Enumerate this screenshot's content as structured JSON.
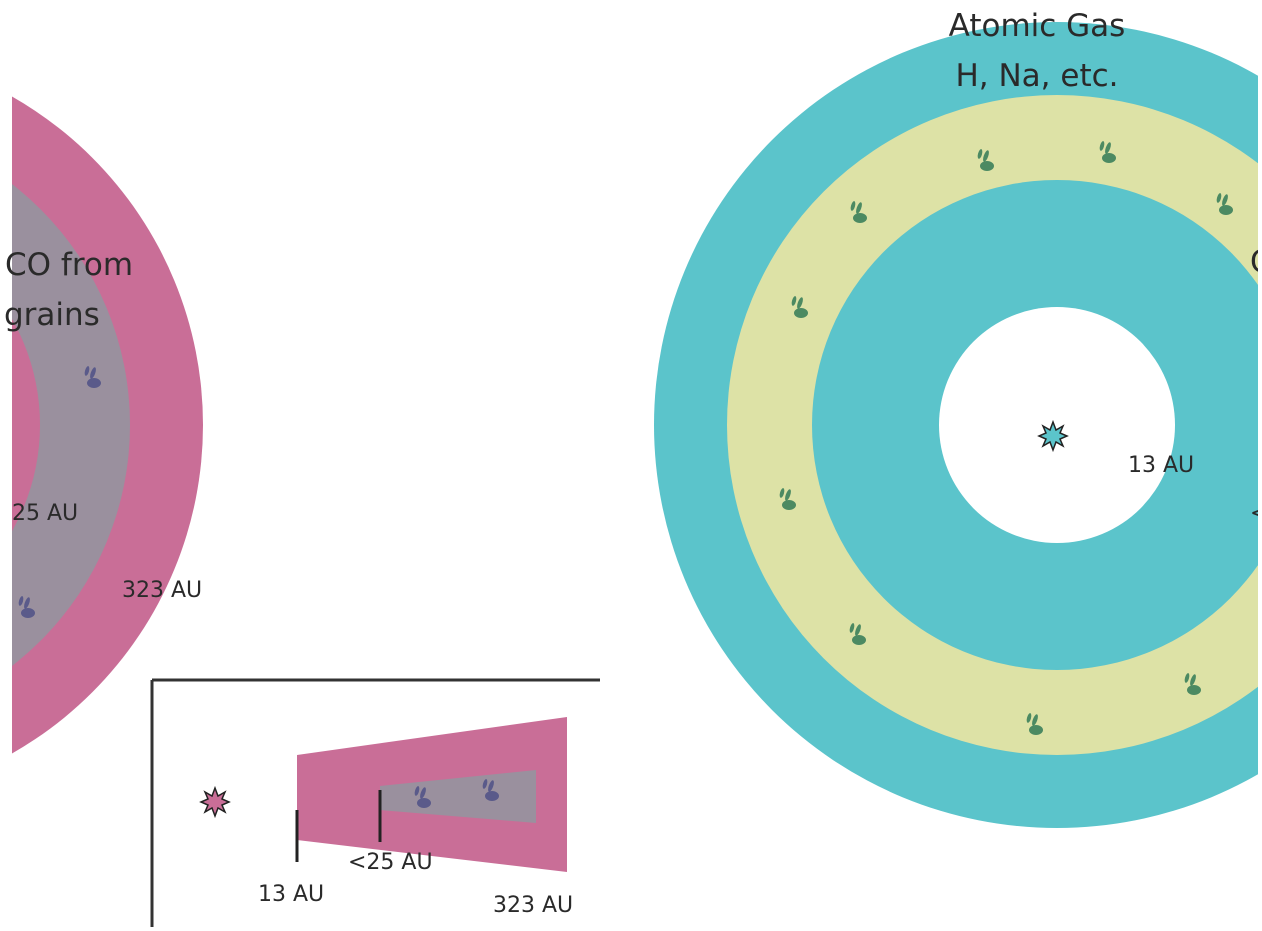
{
  "left_diagram": {
    "label_line1": "CO from",
    "label_line2": "grains",
    "inner_radius_label": "25 AU",
    "outer_radius_label": "323 AU"
  },
  "side_view": {
    "inner_label": "13 AU",
    "mid_label": "<25 AU",
    "outer_label": "323 AU"
  },
  "right_diagram": {
    "title_line1": "Atomic Gas",
    "title_line2": "H, Na, etc.",
    "inner_radius_label": "13 AU",
    "partial_label_right": "C",
    "partial_label_lower": "<"
  },
  "colors": {
    "co_disk": "#c96e97",
    "grain_band": "#9a909e",
    "atomic_gas": "#5bc4cb",
    "dust_band": "#dde2a6",
    "grain_icon_purple": "#5a5a8a",
    "grain_icon_green": "#4c8a62"
  }
}
